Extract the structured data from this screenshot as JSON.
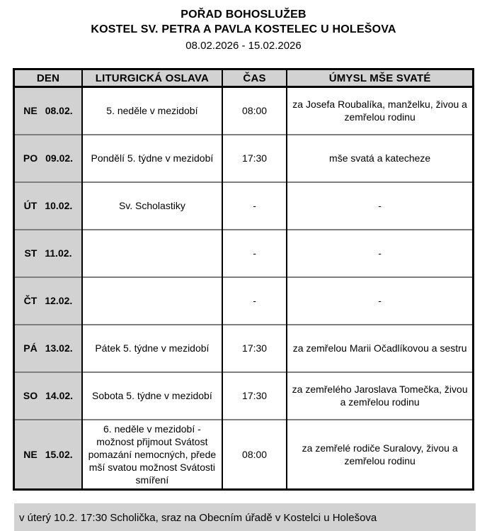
{
  "header": {
    "title": "POŘAD BOHOSLUŽEB",
    "church": "KOSTEL SV. PETRA A PAVLA KOSTELEC U HOLEŠOVA",
    "date_range": "08.02.2026 - 15.02.2026"
  },
  "table": {
    "headers": [
      "DEN",
      "LITURGICKÁ OSLAVA",
      "ČAS",
      "ÚMYSL MŠE SVATÉ"
    ],
    "rows": [
      {
        "day": "NE",
        "date": "08.02.",
        "celebration": "5. neděle v mezidobí",
        "time": "08:00",
        "intention": "za Josefa Roubalíka, manželku, živou a zemřelou rodinu"
      },
      {
        "day": "PO",
        "date": "09.02.",
        "celebration": "Pondělí 5. týdne v mezidobí",
        "time": "17:30",
        "intention": "mše svatá a katecheze"
      },
      {
        "day": "ÚT",
        "date": "10.02.",
        "celebration": "Sv. Scholastiky",
        "time": "-",
        "intention": "-"
      },
      {
        "day": "ST",
        "date": "11.02.",
        "celebration": "",
        "time": "-",
        "intention": "-"
      },
      {
        "day": "ČT",
        "date": "12.02.",
        "celebration": "",
        "time": "-",
        "intention": "-"
      },
      {
        "day": "PÁ",
        "date": "13.02.",
        "celebration": "Pátek 5. týdne v mezidobí",
        "time": "17:30",
        "intention": "za zemřelou Marii Očadlíkovou a sestru"
      },
      {
        "day": "SO",
        "date": "14.02.",
        "celebration": "Sobota 5. týdne v mezidobí",
        "time": "17:30",
        "intention": "za zemřelého Jaroslava Tomečka, živou a zemřelou rodinu"
      },
      {
        "day": "NE",
        "date": "15.02.",
        "celebration": "6. neděle v mezidobí - možnost přijmout Svátost pomazání nemocných, přede mší svatou možnost Svátosti smíření",
        "time": "08:00",
        "intention": "za zemřelé rodiče Suralovy, živou a zemřelou rodinu"
      }
    ]
  },
  "footer": {
    "note": "v úterý 10.2. 17:30 Scholička, sraz na Obecním úřadě v Kostelci u Holešova"
  },
  "colors": {
    "cell_shading": "#d2d2d2",
    "outer_border": "#000000",
    "row_separator": "#7f7f7f",
    "text": "#000000"
  }
}
